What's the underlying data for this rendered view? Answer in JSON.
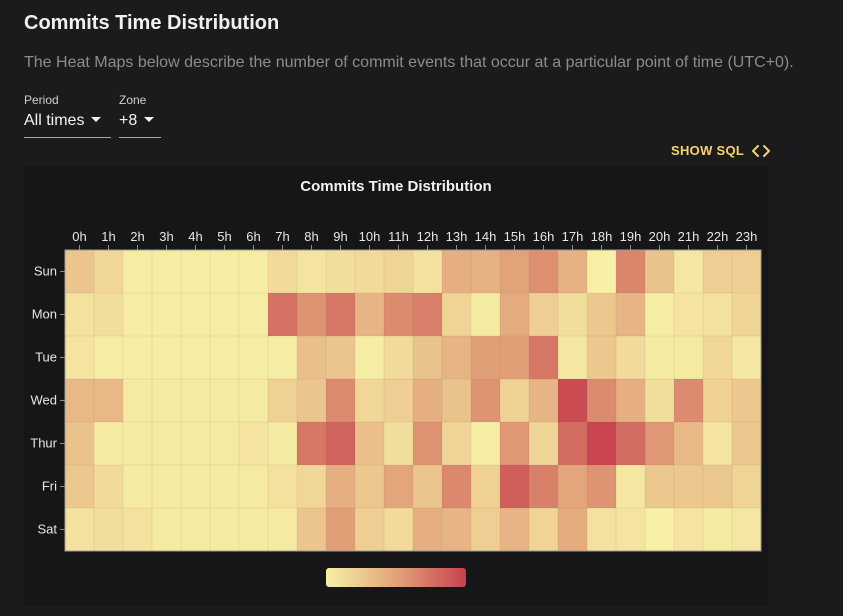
{
  "header": {
    "title": "Commits Time Distribution",
    "description": "The Heat Maps below describe the number of commit events that occur at a particular point of time (UTC+0)."
  },
  "controls": {
    "period": {
      "label": "Period",
      "value": "All times"
    },
    "zone": {
      "label": "Zone",
      "value": "+8"
    },
    "show_sql": "SHOW SQL",
    "show_sql_icon": "code-icon"
  },
  "chart_data": {
    "type": "heatmap",
    "title": "Commits Time Distribution",
    "x_categories": [
      "0h",
      "1h",
      "2h",
      "3h",
      "4h",
      "5h",
      "6h",
      "7h",
      "8h",
      "9h",
      "10h",
      "11h",
      "12h",
      "13h",
      "14h",
      "15h",
      "16h",
      "17h",
      "18h",
      "19h",
      "20h",
      "21h",
      "22h",
      "23h"
    ],
    "y_categories": [
      "Sun",
      "Mon",
      "Tue",
      "Wed",
      "Thur",
      "Fri",
      "Sat"
    ],
    "scale": {
      "min": 0,
      "max": 1,
      "colors": [
        "#f7f0a6",
        "#c8414e"
      ]
    },
    "values": [
      [
        0.28,
        0.16,
        0.02,
        0.02,
        0.02,
        0.02,
        0.02,
        0.14,
        0.08,
        0.12,
        0.14,
        0.18,
        0.1,
        0.42,
        0.4,
        0.5,
        0.6,
        0.4,
        0.0,
        0.65,
        0.3,
        0.06,
        0.22,
        0.22
      ],
      [
        0.1,
        0.12,
        0.02,
        0.02,
        0.02,
        0.02,
        0.02,
        0.75,
        0.58,
        0.72,
        0.38,
        0.62,
        0.68,
        0.18,
        0.04,
        0.45,
        0.22,
        0.12,
        0.26,
        0.38,
        0.02,
        0.08,
        0.1,
        0.18
      ],
      [
        0.08,
        0.02,
        0.02,
        0.02,
        0.02,
        0.02,
        0.02,
        0.02,
        0.32,
        0.28,
        0.02,
        0.14,
        0.3,
        0.38,
        0.52,
        0.52,
        0.72,
        0.06,
        0.26,
        0.14,
        0.04,
        0.04,
        0.16,
        0.06
      ],
      [
        0.36,
        0.36,
        0.04,
        0.04,
        0.04,
        0.04,
        0.04,
        0.2,
        0.28,
        0.62,
        0.16,
        0.22,
        0.42,
        0.3,
        0.58,
        0.2,
        0.38,
        0.95,
        0.62,
        0.42,
        0.12,
        0.62,
        0.2,
        0.26
      ],
      [
        0.3,
        0.04,
        0.04,
        0.04,
        0.04,
        0.04,
        0.08,
        0.04,
        0.72,
        0.82,
        0.32,
        0.12,
        0.58,
        0.18,
        0.02,
        0.56,
        0.18,
        0.78,
        0.98,
        0.78,
        0.56,
        0.36,
        0.08,
        0.26
      ],
      [
        0.26,
        0.14,
        0.04,
        0.04,
        0.04,
        0.04,
        0.04,
        0.1,
        0.16,
        0.42,
        0.26,
        0.48,
        0.28,
        0.64,
        0.2,
        0.85,
        0.68,
        0.48,
        0.58,
        0.06,
        0.26,
        0.26,
        0.26,
        0.18
      ],
      [
        0.1,
        0.12,
        0.1,
        0.04,
        0.04,
        0.04,
        0.04,
        0.04,
        0.28,
        0.52,
        0.22,
        0.14,
        0.42,
        0.38,
        0.22,
        0.38,
        0.18,
        0.44,
        0.1,
        0.08,
        0.0,
        0.08,
        0.04,
        0.06
      ]
    ]
  }
}
